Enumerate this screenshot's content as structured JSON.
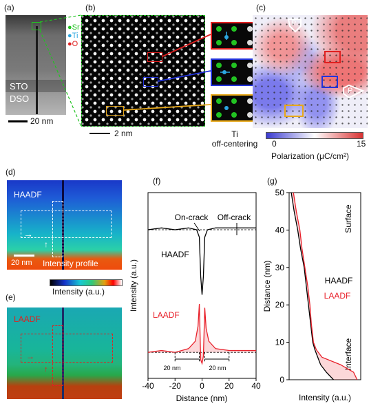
{
  "panels": {
    "a": {
      "tag": "(a)",
      "layer_top": "STO",
      "layer_bottom": "DSO",
      "scalebar": "20 nm"
    },
    "b": {
      "tag": "(b)",
      "legend": [
        {
          "label": "Sr",
          "color": "#22c322"
        },
        {
          "label": "Ti",
          "color": "#2ca6e0"
        },
        {
          "label": "O",
          "color": "#e02020"
        }
      ],
      "scalebar": "2 nm",
      "caption": [
        "Ti",
        "off-centering"
      ]
    },
    "c": {
      "tag": "(c)",
      "scale_min": "0",
      "scale_max": "15",
      "scale_label": "Polarization (μC/cm²)",
      "arrow_label": "P"
    },
    "d": {
      "tag": "(d)",
      "label": "HAADF",
      "scalebar": "20 nm",
      "profile_label": "Intensity profile",
      "colorbar_label": "Intensity (a.u.)"
    },
    "e": {
      "tag": "(e)",
      "label": "LAADF"
    },
    "f": {
      "tag": "(f)",
      "ylabel": "Intensity (a.u.)",
      "xlabel": "Distance (nm)",
      "ann_on": "On-crack",
      "ann_off": "Off-crack",
      "series_haadf": "HAADF",
      "series_laadf": "LAADF",
      "width_left": "20 nm",
      "width_right": "20 nm"
    },
    "g": {
      "tag": "(g)",
      "ylabel": "Distance (nm)",
      "xlabel": "Intensity (a.u.)",
      "ann_top": "Surface",
      "ann_bottom": "Interface",
      "series_haadf": "HAADF",
      "series_laadf": "LAADF"
    }
  },
  "chart_data": [
    {
      "type": "line",
      "panel": "f",
      "xlabel": "Distance (nm)",
      "ylabel": "Intensity (a.u.)",
      "xlim": [
        -40,
        40
      ],
      "xticks": [
        -40,
        -20,
        0,
        20,
        40
      ],
      "series": [
        {
          "name": "HAADF",
          "color": "#000000",
          "x": [
            -40,
            -30,
            -20,
            -10,
            -4,
            -2,
            -1,
            0,
            1,
            2,
            4,
            10,
            20,
            30,
            40
          ],
          "y": [
            0.8,
            0.81,
            0.8,
            0.81,
            0.8,
            0.76,
            0.55,
            0.45,
            0.55,
            0.76,
            0.8,
            0.81,
            0.81,
            0.81,
            0.81
          ]
        },
        {
          "name": "LAADF",
          "color": "#e8202a",
          "x": [
            -40,
            -30,
            -20,
            -10,
            -5,
            -3,
            -2,
            -1,
            0,
            1,
            2,
            3,
            5,
            10,
            20,
            30,
            40
          ],
          "y": [
            0.14,
            0.15,
            0.14,
            0.16,
            0.2,
            0.28,
            0.4,
            0.1,
            0.08,
            0.12,
            0.38,
            0.27,
            0.2,
            0.16,
            0.15,
            0.15,
            0.15
          ]
        }
      ]
    },
    {
      "type": "line",
      "panel": "g",
      "xlabel": "Intensity (a.u.)",
      "ylabel": "Distance (nm)",
      "ylim": [
        0,
        50
      ],
      "yticks": [
        0,
        10,
        20,
        30,
        40,
        50
      ],
      "series": [
        {
          "name": "HAADF",
          "color": "#000000",
          "distance": [
            0,
            2,
            4,
            6,
            8,
            10,
            15,
            20,
            25,
            30,
            35,
            40,
            45,
            50
          ],
          "intensity": [
            0.62,
            0.52,
            0.44,
            0.4,
            0.36,
            0.33,
            0.3,
            0.27,
            0.24,
            0.21,
            0.16,
            0.12,
            0.07,
            0.03
          ]
        },
        {
          "name": "LAADF",
          "color": "#e8202a",
          "distance": [
            0,
            2,
            4,
            6,
            8,
            10,
            15,
            20,
            25,
            30,
            35,
            40,
            45,
            50
          ],
          "intensity": [
            0.95,
            0.9,
            0.72,
            0.46,
            0.38,
            0.34,
            0.31,
            0.29,
            0.26,
            0.22,
            0.18,
            0.15,
            0.1,
            0.06
          ]
        }
      ]
    }
  ]
}
